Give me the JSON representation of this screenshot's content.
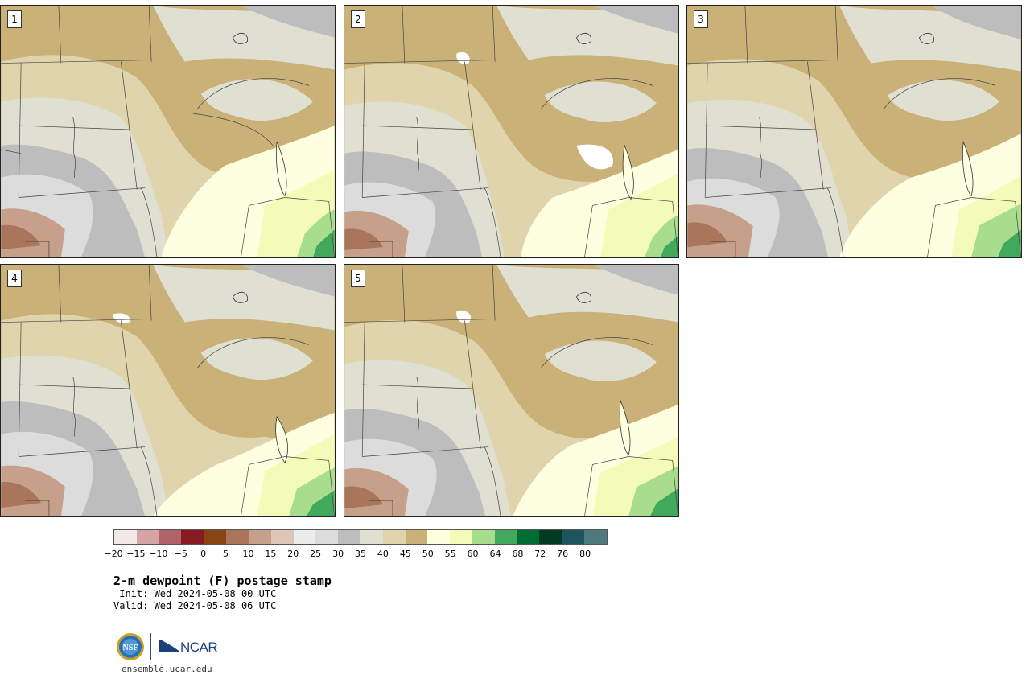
{
  "panels": [
    {
      "number": "1"
    },
    {
      "number": "2"
    },
    {
      "number": "3"
    },
    {
      "number": "4"
    },
    {
      "number": "5"
    }
  ],
  "colorbar": {
    "colors": [
      "#f3e8e8",
      "#d6a3a7",
      "#b2626b",
      "#8a1a22",
      "#8b4513",
      "#a9765b",
      "#c6a08a",
      "#dec6b6",
      "#ececec",
      "#dcdcdc",
      "#bdbdbd",
      "#dfdfd2",
      "#e0d4ac",
      "#c9b178",
      "#fefee0",
      "#f4fab8",
      "#a8dd8e",
      "#42a85c",
      "#006d35",
      "#013a22",
      "#1e5460",
      "#4e7a7e"
    ],
    "tick_labels": [
      "−20",
      "−15",
      "−10",
      "−5",
      "0",
      "5",
      "10",
      "15",
      "20",
      "25",
      "30",
      "35",
      "40",
      "45",
      "50",
      "55",
      "60",
      "64",
      "68",
      "72",
      "76",
      "80"
    ]
  },
  "title": "2-m dewpoint (F) postage stamp",
  "init_line": " Init: Wed 2024-05-08 00 UTC",
  "valid_line": "Valid: Wed 2024-05-08 06 UTC",
  "logo": {
    "ncar_text": "NCAR",
    "nsf_text": "NSF"
  },
  "site": "ensemble.ucar.edu"
}
